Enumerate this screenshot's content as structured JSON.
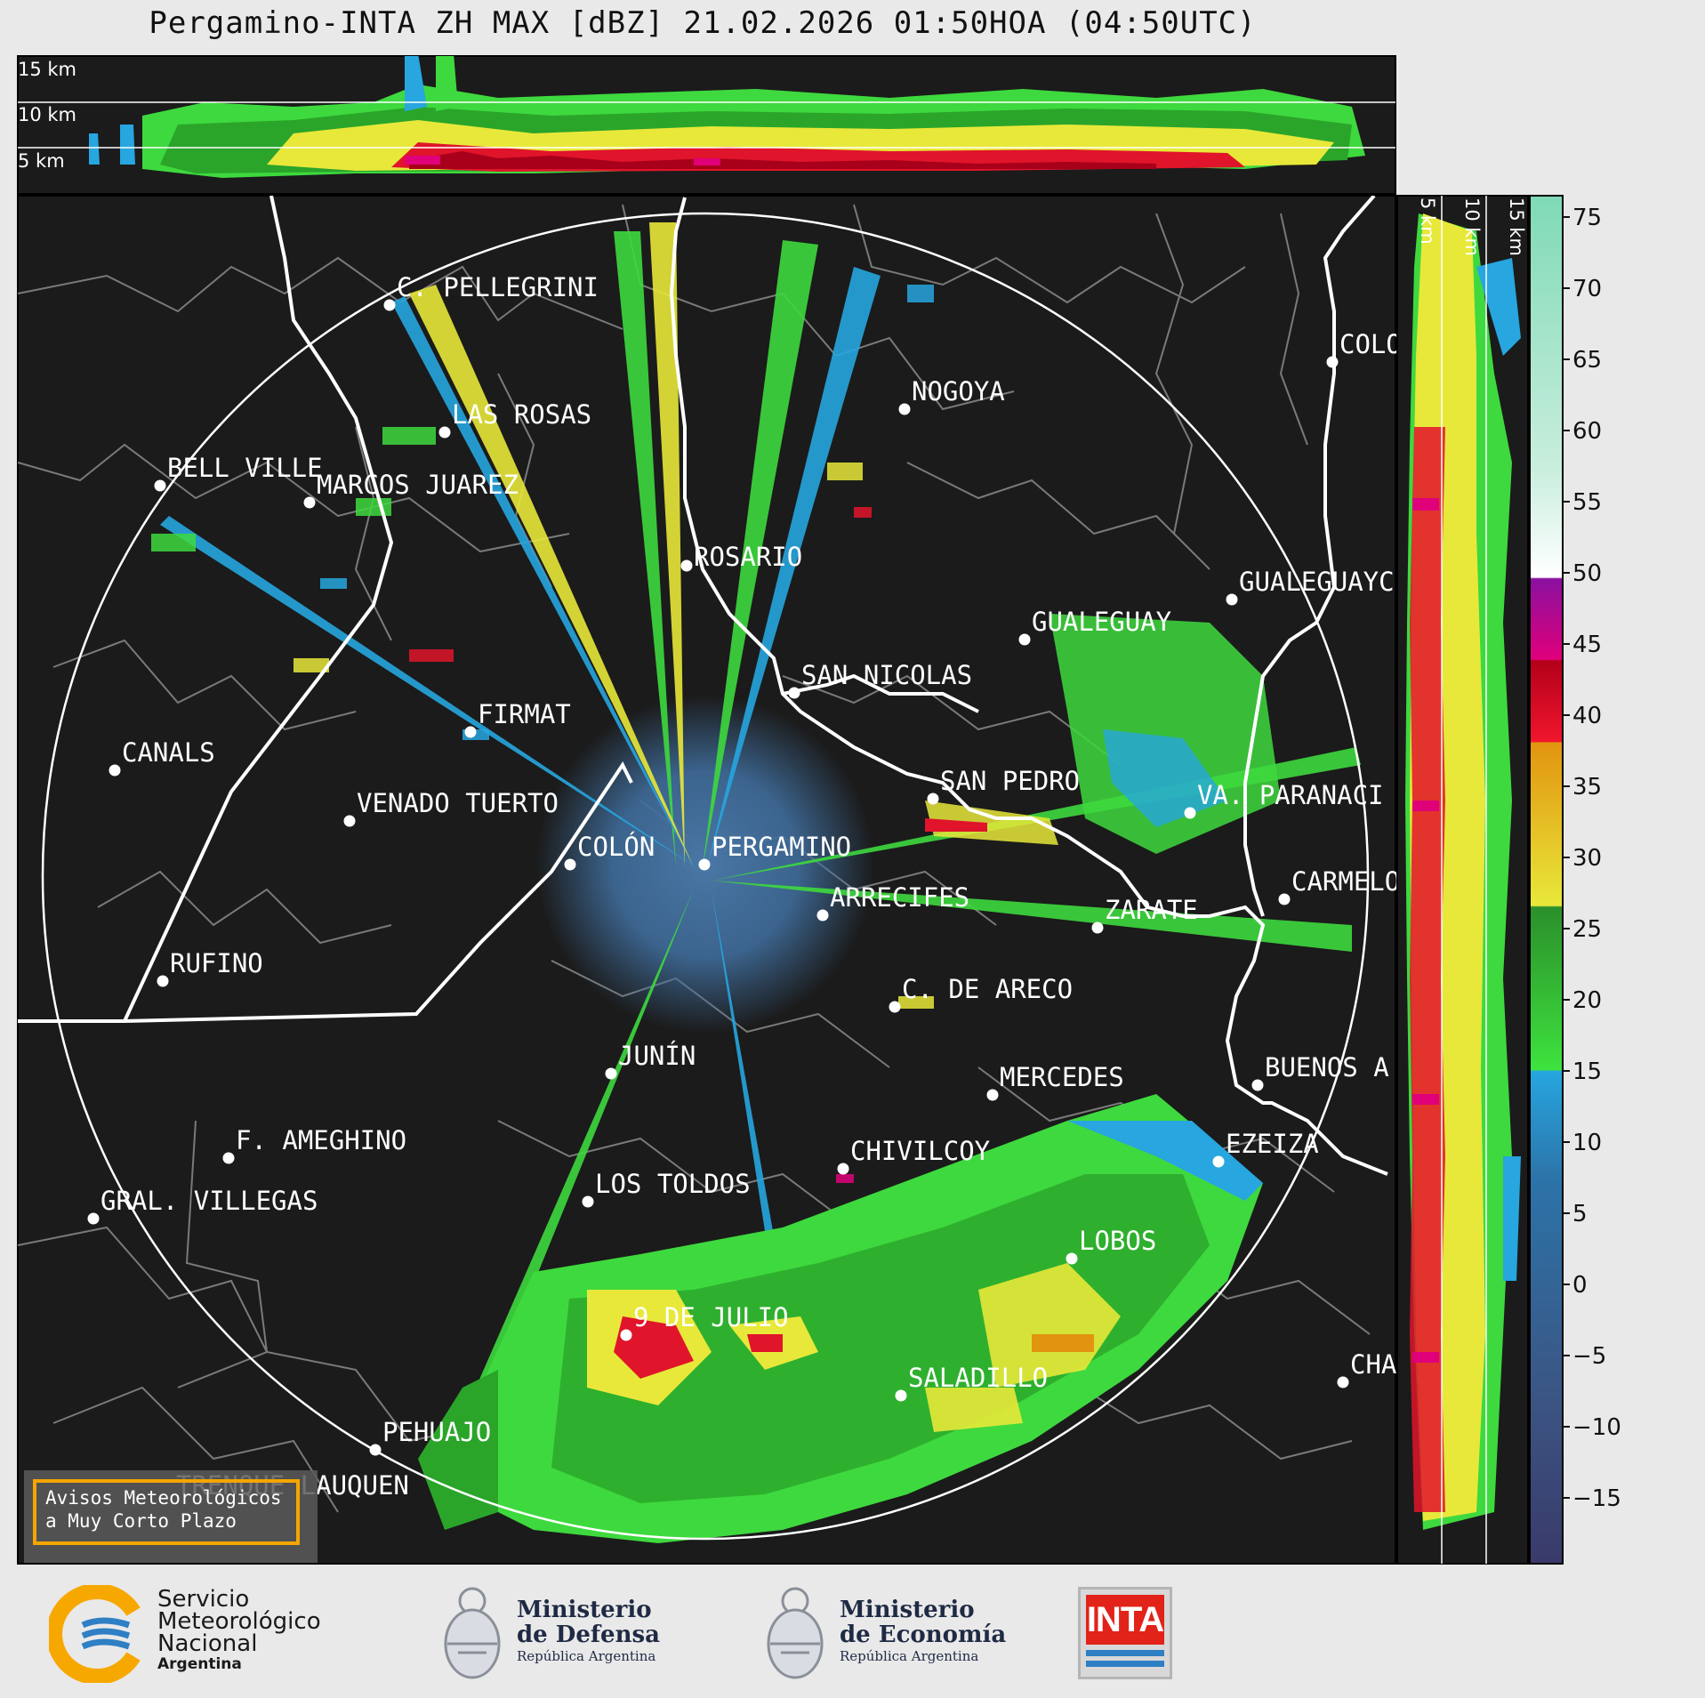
{
  "title": "Pergamino-INTA ZH MAX [dBZ] 21.02.2026 01:50HOA (04:50UTC)",
  "top_profile": {
    "altitude_labels": [
      "15 km",
      "10 km",
      "5 km"
    ]
  },
  "side_profile": {
    "altitude_labels": [
      "5 km",
      "10 km",
      "15 km"
    ]
  },
  "colorbar": {
    "ticks": [
      "75",
      "70",
      "65",
      "60",
      "55",
      "50",
      "45",
      "40",
      "35",
      "30",
      "25",
      "20",
      "15",
      "10",
      "5",
      "0",
      "−5",
      "−10",
      "−15"
    ]
  },
  "cities": [
    {
      "name": "C. PELLEGRINI"
    },
    {
      "name": "LAS ROSAS"
    },
    {
      "name": "NOGOYA"
    },
    {
      "name": "BELL VILLE"
    },
    {
      "name": "MARCOS JUAREZ"
    },
    {
      "name": "ROSARIO"
    },
    {
      "name": "COLO"
    },
    {
      "name": "GUALEGUAYC"
    },
    {
      "name": "GUALEGUAY"
    },
    {
      "name": "SAN NICOLAS"
    },
    {
      "name": "FIRMAT"
    },
    {
      "name": "CANALS"
    },
    {
      "name": "SAN PEDRO"
    },
    {
      "name": "VENADO TUERTO"
    },
    {
      "name": "VA. PARANACI"
    },
    {
      "name": "COLÓN"
    },
    {
      "name": "PERGAMINO"
    },
    {
      "name": "CARMELO"
    },
    {
      "name": "ARRECIFES"
    },
    {
      "name": "ZARATE"
    },
    {
      "name": "RUFINO"
    },
    {
      "name": "C. DE ARECO"
    },
    {
      "name": "JUNÍN"
    },
    {
      "name": "BUENOS A"
    },
    {
      "name": "MERCEDES"
    },
    {
      "name": "F. AMEGHINO"
    },
    {
      "name": "EZEIZA"
    },
    {
      "name": "CHIVILCOY"
    },
    {
      "name": "GRAL. VILLEGAS"
    },
    {
      "name": "LOS TOLDOS"
    },
    {
      "name": "LOBOS"
    },
    {
      "name": "9 DE JULIO"
    },
    {
      "name": "CHA"
    },
    {
      "name": "SALADILLO"
    },
    {
      "name": "PEHUAJO"
    },
    {
      "name": "TRENQUE LAUQUEN"
    }
  ],
  "avisos": {
    "line1": "Avisos Meteorológicos",
    "line2": "a Muy Corto Plazo"
  },
  "footer": {
    "smn": [
      "Servicio",
      "Meteorológico",
      "Nacional",
      "Argentina"
    ],
    "defensa": [
      "Ministerio",
      "de Defensa",
      "República Argentina"
    ],
    "economia": [
      "Ministerio",
      "de Economía",
      "República Argentina"
    ],
    "inta": "INTA"
  },
  "colors": {
    "background": "#1b1b1b",
    "page": "#e9e9e9",
    "boundary": "#7a7a7a",
    "river": "#ffffff",
    "smn_orange": "#f7a800",
    "smn_blue": "#2e7fc4",
    "inta_red": "#e2231a"
  }
}
